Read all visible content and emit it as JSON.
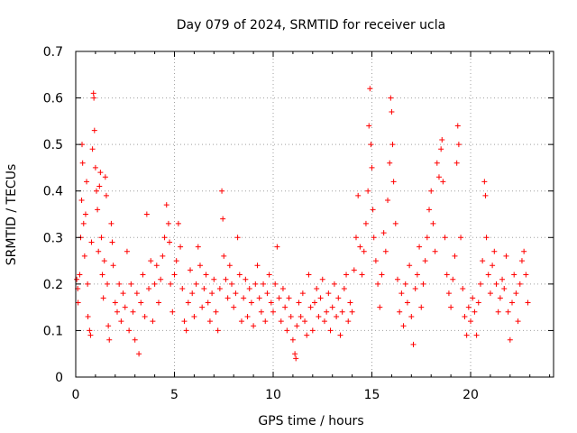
{
  "chart_data": {
    "type": "scatter",
    "title": "Day 079 of 2024, SRMTID for receiver ucla",
    "xlabel": "GPS time / hours",
    "ylabel": "SRMTID / TECUs",
    "xlim": [
      0,
      24.2
    ],
    "ylim": [
      0,
      0.7
    ],
    "x_ticks": [
      0,
      5,
      10,
      15,
      20
    ],
    "y_ticks": [
      0,
      0.1,
      0.2,
      0.3,
      0.4,
      0.5,
      0.6,
      0.7
    ],
    "grid": true,
    "marker": "+",
    "colors": {
      "series": "#ff0000",
      "grid": "#a0a0a0",
      "axis": "#000000"
    },
    "series": [
      {
        "name": "SRMTID",
        "points": [
          [
            0.05,
            0.21
          ],
          [
            0.1,
            0.19
          ],
          [
            0.12,
            0.16
          ],
          [
            0.2,
            0.22
          ],
          [
            0.25,
            0.3
          ],
          [
            0.3,
            0.38
          ],
          [
            0.32,
            0.5
          ],
          [
            0.35,
            0.46
          ],
          [
            0.4,
            0.33
          ],
          [
            0.45,
            0.26
          ],
          [
            0.5,
            0.35
          ],
          [
            0.55,
            0.42
          ],
          [
            0.6,
            0.2
          ],
          [
            0.62,
            0.13
          ],
          [
            0.7,
            0.1
          ],
          [
            0.75,
            0.09
          ],
          [
            0.8,
            0.29
          ],
          [
            0.85,
            0.49
          ],
          [
            0.9,
            0.61
          ],
          [
            0.92,
            0.6
          ],
          [
            0.95,
            0.53
          ],
          [
            1.0,
            0.45
          ],
          [
            1.05,
            0.4
          ],
          [
            1.1,
            0.36
          ],
          [
            1.15,
            0.27
          ],
          [
            1.2,
            0.41
          ],
          [
            1.25,
            0.44
          ],
          [
            1.3,
            0.3
          ],
          [
            1.35,
            0.22
          ],
          [
            1.4,
            0.17
          ],
          [
            1.45,
            0.25
          ],
          [
            1.5,
            0.43
          ],
          [
            1.55,
            0.39
          ],
          [
            1.6,
            0.2
          ],
          [
            1.65,
            0.11
          ],
          [
            1.7,
            0.08
          ],
          [
            1.8,
            0.33
          ],
          [
            1.85,
            0.29
          ],
          [
            1.9,
            0.24
          ],
          [
            2.0,
            0.16
          ],
          [
            2.1,
            0.14
          ],
          [
            2.2,
            0.2
          ],
          [
            2.3,
            0.12
          ],
          [
            2.4,
            0.18
          ],
          [
            2.5,
            0.15
          ],
          [
            2.6,
            0.27
          ],
          [
            2.7,
            0.1
          ],
          [
            2.8,
            0.2
          ],
          [
            2.9,
            0.14
          ],
          [
            3.0,
            0.08
          ],
          [
            3.1,
            0.18
          ],
          [
            3.2,
            0.05
          ],
          [
            3.3,
            0.16
          ],
          [
            3.4,
            0.22
          ],
          [
            3.5,
            0.13
          ],
          [
            3.6,
            0.35
          ],
          [
            3.7,
            0.19
          ],
          [
            3.8,
            0.25
          ],
          [
            3.9,
            0.12
          ],
          [
            4.0,
            0.2
          ],
          [
            4.1,
            0.24
          ],
          [
            4.2,
            0.16
          ],
          [
            4.3,
            0.21
          ],
          [
            4.4,
            0.26
          ],
          [
            4.5,
            0.3
          ],
          [
            4.6,
            0.37
          ],
          [
            4.7,
            0.33
          ],
          [
            4.75,
            0.29
          ],
          [
            4.8,
            0.2
          ],
          [
            4.9,
            0.14
          ],
          [
            5.0,
            0.22
          ],
          [
            5.1,
            0.25
          ],
          [
            5.2,
            0.33
          ],
          [
            5.3,
            0.28
          ],
          [
            5.4,
            0.19
          ],
          [
            5.5,
            0.12
          ],
          [
            5.6,
            0.1
          ],
          [
            5.7,
            0.16
          ],
          [
            5.8,
            0.23
          ],
          [
            5.9,
            0.18
          ],
          [
            6.0,
            0.13
          ],
          [
            6.1,
            0.2
          ],
          [
            6.2,
            0.28
          ],
          [
            6.3,
            0.24
          ],
          [
            6.4,
            0.15
          ],
          [
            6.5,
            0.19
          ],
          [
            6.6,
            0.22
          ],
          [
            6.7,
            0.16
          ],
          [
            6.8,
            0.12
          ],
          [
            6.9,
            0.18
          ],
          [
            7.0,
            0.21
          ],
          [
            7.1,
            0.14
          ],
          [
            7.2,
            0.1
          ],
          [
            7.3,
            0.19
          ],
          [
            7.4,
            0.4
          ],
          [
            7.45,
            0.34
          ],
          [
            7.5,
            0.26
          ],
          [
            7.6,
            0.21
          ],
          [
            7.7,
            0.17
          ],
          [
            7.8,
            0.24
          ],
          [
            7.9,
            0.2
          ],
          [
            8.0,
            0.15
          ],
          [
            8.1,
            0.18
          ],
          [
            8.2,
            0.3
          ],
          [
            8.3,
            0.22
          ],
          [
            8.4,
            0.12
          ],
          [
            8.5,
            0.17
          ],
          [
            8.6,
            0.21
          ],
          [
            8.7,
            0.13
          ],
          [
            8.8,
            0.19
          ],
          [
            8.9,
            0.16
          ],
          [
            9.0,
            0.11
          ],
          [
            9.1,
            0.2
          ],
          [
            9.2,
            0.24
          ],
          [
            9.3,
            0.17
          ],
          [
            9.4,
            0.14
          ],
          [
            9.5,
            0.2
          ],
          [
            9.6,
            0.12
          ],
          [
            9.7,
            0.18
          ],
          [
            9.8,
            0.22
          ],
          [
            9.9,
            0.16
          ],
          [
            10.0,
            0.14
          ],
          [
            10.1,
            0.2
          ],
          [
            10.2,
            0.28
          ],
          [
            10.3,
            0.17
          ],
          [
            10.4,
            0.12
          ],
          [
            10.5,
            0.19
          ],
          [
            10.6,
            0.15
          ],
          [
            10.7,
            0.1
          ],
          [
            10.8,
            0.17
          ],
          [
            10.9,
            0.13
          ],
          [
            11.0,
            0.08
          ],
          [
            11.1,
            0.05
          ],
          [
            11.15,
            0.04
          ],
          [
            11.2,
            0.11
          ],
          [
            11.3,
            0.16
          ],
          [
            11.4,
            0.13
          ],
          [
            11.5,
            0.18
          ],
          [
            11.6,
            0.12
          ],
          [
            11.7,
            0.09
          ],
          [
            11.8,
            0.22
          ],
          [
            11.9,
            0.15
          ],
          [
            12.0,
            0.1
          ],
          [
            12.1,
            0.16
          ],
          [
            12.2,
            0.19
          ],
          [
            12.3,
            0.13
          ],
          [
            12.4,
            0.17
          ],
          [
            12.5,
            0.21
          ],
          [
            12.6,
            0.12
          ],
          [
            12.7,
            0.14
          ],
          [
            12.8,
            0.18
          ],
          [
            12.9,
            0.1
          ],
          [
            13.0,
            0.15
          ],
          [
            13.1,
            0.2
          ],
          [
            13.2,
            0.13
          ],
          [
            13.3,
            0.17
          ],
          [
            13.4,
            0.09
          ],
          [
            13.5,
            0.14
          ],
          [
            13.6,
            0.19
          ],
          [
            13.7,
            0.22
          ],
          [
            13.8,
            0.12
          ],
          [
            13.9,
            0.16
          ],
          [
            14.0,
            0.14
          ],
          [
            14.1,
            0.23
          ],
          [
            14.2,
            0.3
          ],
          [
            14.3,
            0.39
          ],
          [
            14.4,
            0.28
          ],
          [
            14.5,
            0.22
          ],
          [
            14.6,
            0.27
          ],
          [
            14.7,
            0.33
          ],
          [
            14.8,
            0.4
          ],
          [
            14.85,
            0.54
          ],
          [
            14.9,
            0.62
          ],
          [
            14.95,
            0.5
          ],
          [
            15.0,
            0.45
          ],
          [
            15.05,
            0.36
          ],
          [
            15.1,
            0.3
          ],
          [
            15.2,
            0.25
          ],
          [
            15.3,
            0.2
          ],
          [
            15.4,
            0.15
          ],
          [
            15.5,
            0.22
          ],
          [
            15.6,
            0.31
          ],
          [
            15.7,
            0.27
          ],
          [
            15.8,
            0.38
          ],
          [
            15.9,
            0.46
          ],
          [
            15.95,
            0.6
          ],
          [
            16.0,
            0.57
          ],
          [
            16.05,
            0.5
          ],
          [
            16.1,
            0.42
          ],
          [
            16.2,
            0.33
          ],
          [
            16.3,
            0.21
          ],
          [
            16.4,
            0.14
          ],
          [
            16.5,
            0.18
          ],
          [
            16.6,
            0.11
          ],
          [
            16.7,
            0.2
          ],
          [
            16.8,
            0.16
          ],
          [
            16.9,
            0.24
          ],
          [
            17.0,
            0.13
          ],
          [
            17.1,
            0.07
          ],
          [
            17.2,
            0.19
          ],
          [
            17.3,
            0.22
          ],
          [
            17.4,
            0.28
          ],
          [
            17.5,
            0.15
          ],
          [
            17.6,
            0.2
          ],
          [
            17.7,
            0.25
          ],
          [
            17.8,
            0.3
          ],
          [
            17.9,
            0.36
          ],
          [
            18.0,
            0.4
          ],
          [
            18.1,
            0.33
          ],
          [
            18.2,
            0.27
          ],
          [
            18.3,
            0.46
          ],
          [
            18.4,
            0.43
          ],
          [
            18.5,
            0.49
          ],
          [
            18.55,
            0.51
          ],
          [
            18.6,
            0.42
          ],
          [
            18.7,
            0.3
          ],
          [
            18.8,
            0.22
          ],
          [
            18.9,
            0.18
          ],
          [
            19.0,
            0.15
          ],
          [
            19.1,
            0.21
          ],
          [
            19.2,
            0.26
          ],
          [
            19.3,
            0.46
          ],
          [
            19.35,
            0.54
          ],
          [
            19.4,
            0.5
          ],
          [
            19.5,
            0.3
          ],
          [
            19.6,
            0.19
          ],
          [
            19.7,
            0.13
          ],
          [
            19.8,
            0.09
          ],
          [
            19.9,
            0.15
          ],
          [
            20.0,
            0.12
          ],
          [
            20.1,
            0.17
          ],
          [
            20.2,
            0.14
          ],
          [
            20.3,
            0.09
          ],
          [
            20.4,
            0.16
          ],
          [
            20.5,
            0.2
          ],
          [
            20.6,
            0.25
          ],
          [
            20.7,
            0.42
          ],
          [
            20.75,
            0.39
          ],
          [
            20.8,
            0.3
          ],
          [
            20.9,
            0.22
          ],
          [
            21.0,
            0.18
          ],
          [
            21.1,
            0.24
          ],
          [
            21.2,
            0.27
          ],
          [
            21.3,
            0.2
          ],
          [
            21.4,
            0.14
          ],
          [
            21.5,
            0.17
          ],
          [
            21.6,
            0.21
          ],
          [
            21.7,
            0.19
          ],
          [
            21.8,
            0.26
          ],
          [
            21.9,
            0.14
          ],
          [
            22.0,
            0.08
          ],
          [
            22.1,
            0.16
          ],
          [
            22.2,
            0.22
          ],
          [
            22.3,
            0.18
          ],
          [
            22.4,
            0.12
          ],
          [
            22.5,
            0.2
          ],
          [
            22.6,
            0.25
          ],
          [
            22.7,
            0.27
          ],
          [
            22.8,
            0.22
          ],
          [
            22.9,
            0.16
          ]
        ]
      }
    ]
  }
}
